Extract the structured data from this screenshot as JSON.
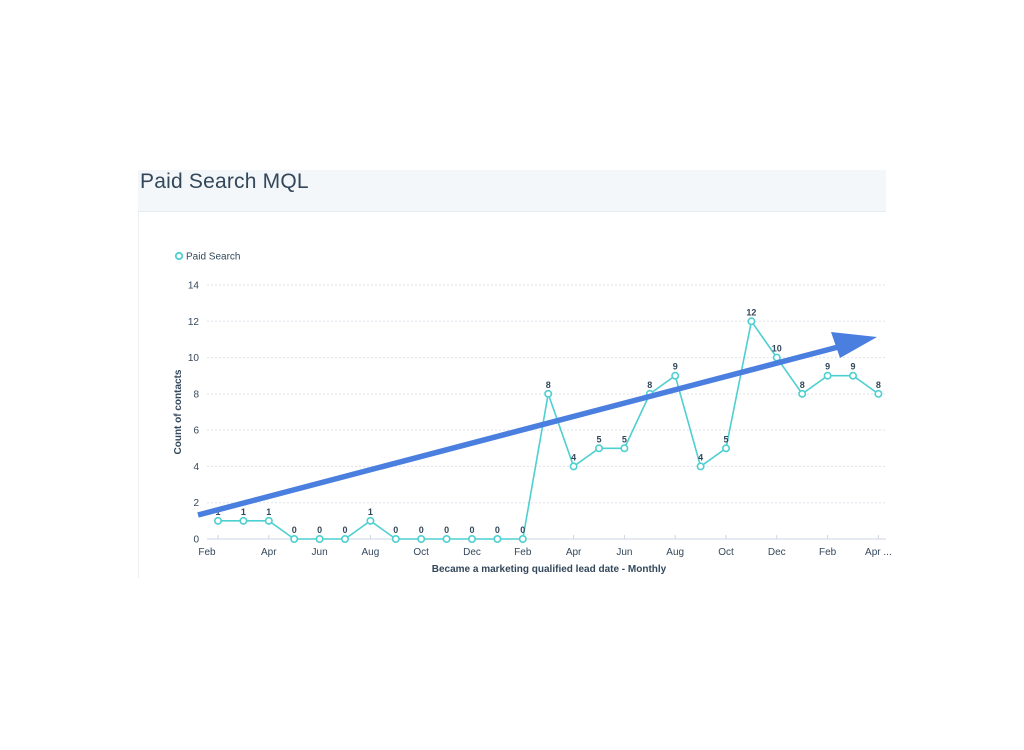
{
  "card": {
    "title": "Paid Search MQL"
  },
  "colors": {
    "series": "#4ecfd0",
    "trend_arrow": "#4a7fe0",
    "grid": "#dfe3eb",
    "text": "#33475b",
    "header_bg": "#f4f7f9"
  },
  "legend": {
    "items": [
      {
        "label": "Paid Search",
        "icon": "circle-marker-icon"
      }
    ]
  },
  "axes": {
    "y_title": "Count of contacts",
    "x_title": "Became a marketing qualified lead date - Monthly",
    "y_ticks": [
      "0",
      "2",
      "4",
      "6",
      "8",
      "10",
      "12",
      "14"
    ],
    "x_ticks": [
      "Feb",
      "Apr",
      "Jun",
      "Aug",
      "Oct",
      "Dec",
      "Feb",
      "Apr",
      "Jun",
      "Aug",
      "Oct",
      "Dec",
      "Feb",
      "Apr ..."
    ]
  },
  "chart_data": {
    "type": "line",
    "title": "Paid Search MQL",
    "xlabel": "Became a marketing qualified lead date - Monthly",
    "ylabel": "Count of contacts",
    "ylim": [
      0,
      14
    ],
    "grid": true,
    "legend_position": "top-left",
    "categories": [
      "Feb",
      "Mar",
      "Apr",
      "May",
      "Jun",
      "Jul",
      "Aug",
      "Sep",
      "Oct",
      "Nov",
      "Dec",
      "Jan",
      "Feb",
      "Mar",
      "Apr",
      "May",
      "Jun",
      "Jul",
      "Aug",
      "Sep",
      "Oct",
      "Nov",
      "Dec",
      "Jan",
      "Feb",
      "Mar",
      "Apr"
    ],
    "series": [
      {
        "name": "Paid Search",
        "values": [
          1,
          1,
          1,
          0,
          0,
          0,
          1,
          0,
          0,
          0,
          0,
          0,
          0,
          8,
          4,
          5,
          5,
          8,
          9,
          4,
          5,
          12,
          10,
          8,
          9,
          9,
          8
        ]
      }
    ],
    "annotations": [
      {
        "type": "trend-arrow",
        "description": "Upward trend arrow drawn from bottom-left to top-right"
      }
    ]
  }
}
